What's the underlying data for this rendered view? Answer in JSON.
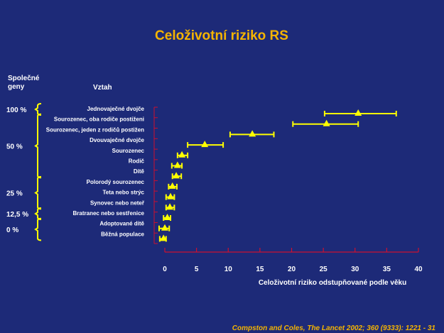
{
  "chart_data": {
    "type": "scatter",
    "title": "Celoživotní riziko RS",
    "left_header": "Společné geny",
    "category_header": "Vztah",
    "xlabel": "Celoživotní riziko odstupňované podle věku",
    "xlim": [
      0,
      40
    ],
    "xticks": [
      "0",
      "5",
      "10",
      "15",
      "20",
      "25",
      "30",
      "35",
      "40"
    ],
    "categories": [
      "Jednovaječné dvojče",
      "Sourozenec, oba rodiče postiženi",
      "Sourozenec, jeden z rodičů postižen",
      "Dvouvaječné dvojče",
      "Sourozenec",
      "Rodič",
      "Dítě",
      "Polorodý sourozenec",
      "Teta nebo strýc",
      "Synovec nebo neteř",
      "Bratranec nebo sestřenice",
      "Adoptované dítě",
      "Běžná populace"
    ],
    "series": [
      {
        "values": [
          30.5,
          25.5,
          13.8,
          6.3,
          2.7,
          2.0,
          1.8,
          1.2,
          0.9,
          0.8,
          0.4,
          0.0,
          -0.2
        ],
        "lower": [
          25.2,
          20.2,
          10.3,
          3.6,
          2.0,
          1.1,
          1.2,
          0.6,
          0.2,
          0.2,
          -0.2,
          -0.9,
          -0.8
        ],
        "upper": [
          36.5,
          30.5,
          17.2,
          9.2,
          3.6,
          2.7,
          2.6,
          1.9,
          1.5,
          1.5,
          0.9,
          0.7,
          0.2
        ]
      }
    ],
    "gene_groups": [
      {
        "label": "100 %",
        "from": 0,
        "to": 0
      },
      {
        "label": "50 %",
        "from": 1,
        "to": 6
      },
      {
        "label": "25 %",
        "from": 7,
        "to": 9
      },
      {
        "label": "12,5 %",
        "from": 10,
        "to": 10
      },
      {
        "label": "0 %",
        "from": 11,
        "to": 12
      }
    ],
    "citation": "Compston and Coles, The Lancet  2002; 360 (9333): 1221 - 31"
  },
  "colors": {
    "background": "#1d2a78",
    "title": "#f5b400",
    "axis": "#cc1030",
    "marker": "#ffff00",
    "text": "#ffffff",
    "bracket": "#ffff00",
    "citation": "#f5b400"
  }
}
